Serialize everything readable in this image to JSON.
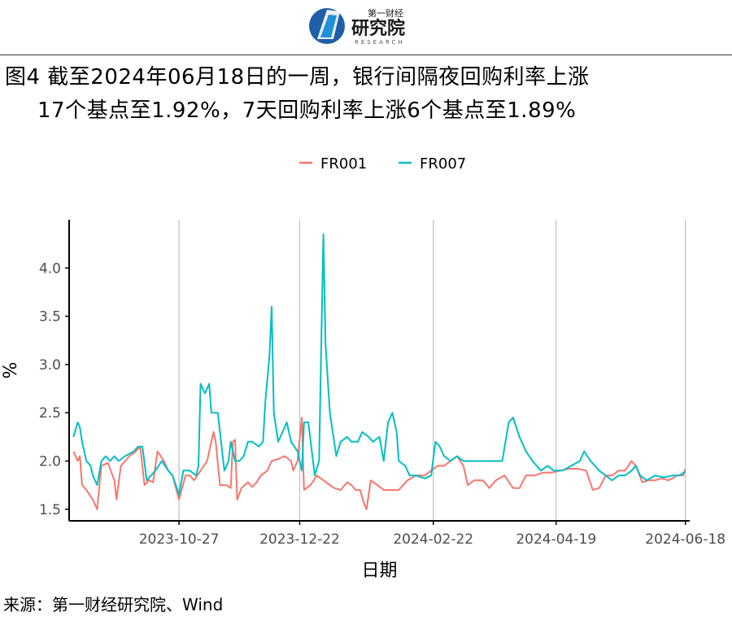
{
  "header": {
    "logo_brand_small": "第一财经",
    "logo_brand_large": "研究院",
    "logo_sub": "RESEARCH"
  },
  "title_line1": "图4  截至2024年06月18日的一周，银行间隔夜回购利率上涨",
  "title_line2": "17个基点至1.92%，7天回购利率上涨6个基点至1.89%",
  "source": "来源：第一财经研究院、Wind",
  "colors": {
    "FR001": "#F8766D",
    "FR007": "#00BFC4",
    "grid": "#BEBEBE",
    "axis": "#000000"
  },
  "chart_data": {
    "type": "line",
    "title": "",
    "xlabel": "日期",
    "ylabel": "%",
    "ylim": [
      1.38,
      4.5
    ],
    "xlim": [
      "2023-09-06",
      "2024-06-20"
    ],
    "yticks": [
      1.5,
      2.0,
      2.5,
      3.0,
      3.5,
      4.0
    ],
    "ytick_labels": [
      "1.5",
      "2.0",
      "2.5",
      "3.0",
      "3.5",
      "4.0"
    ],
    "xticks": [
      "2023-10-27",
      "2023-12-22",
      "2024-02-22",
      "2024-04-19",
      "2024-06-18"
    ],
    "grid": "vertical at x ticks",
    "legend_position": "top",
    "series": [
      {
        "name": "FR001",
        "points": [
          [
            "2023-09-08",
            2.1
          ],
          [
            "2023-09-10",
            2.0
          ],
          [
            "2023-09-11",
            2.05
          ],
          [
            "2023-09-12",
            1.75
          ],
          [
            "2023-09-14",
            1.7
          ],
          [
            "2023-09-17",
            1.6
          ],
          [
            "2023-09-19",
            1.5
          ],
          [
            "2023-09-21",
            1.95
          ],
          [
            "2023-09-24",
            1.98
          ],
          [
            "2023-09-27",
            1.8
          ],
          [
            "2023-09-28",
            1.6
          ],
          [
            "2023-09-30",
            1.95
          ],
          [
            "2023-10-04",
            2.05
          ],
          [
            "2023-10-07",
            2.1
          ],
          [
            "2023-10-09",
            2.15
          ],
          [
            "2023-10-11",
            1.75
          ],
          [
            "2023-10-13",
            1.8
          ],
          [
            "2023-10-15",
            1.78
          ],
          [
            "2023-10-17",
            2.1
          ],
          [
            "2023-10-20",
            2.0
          ],
          [
            "2023-10-22",
            1.9
          ],
          [
            "2023-10-24",
            1.85
          ],
          [
            "2023-10-27",
            1.6
          ],
          [
            "2023-10-30",
            1.85
          ],
          [
            "2023-11-01",
            1.85
          ],
          [
            "2023-11-03",
            1.8
          ],
          [
            "2023-11-06",
            1.9
          ],
          [
            "2023-11-09",
            2.0
          ],
          [
            "2023-11-12",
            2.3
          ],
          [
            "2023-11-13",
            2.2
          ],
          [
            "2023-11-15",
            1.75
          ],
          [
            "2023-11-18",
            1.75
          ],
          [
            "2023-11-20",
            1.72
          ],
          [
            "2023-11-21",
            2.2
          ],
          [
            "2023-11-22",
            2.22
          ],
          [
            "2023-11-23",
            1.6
          ],
          [
            "2023-11-25",
            1.72
          ],
          [
            "2023-11-28",
            1.78
          ],
          [
            "2023-11-30",
            1.73
          ],
          [
            "2023-12-02",
            1.78
          ],
          [
            "2023-12-04",
            1.85
          ],
          [
            "2023-12-07",
            1.9
          ],
          [
            "2023-12-09",
            2.0
          ],
          [
            "2023-12-12",
            2.02
          ],
          [
            "2023-12-15",
            2.05
          ],
          [
            "2023-12-18",
            2.0
          ],
          [
            "2023-12-19",
            1.9
          ],
          [
            "2023-12-21",
            2.0
          ],
          [
            "2023-12-23",
            2.45
          ],
          [
            "2023-12-24",
            1.7
          ],
          [
            "2023-12-27",
            1.75
          ],
          [
            "2023-12-30",
            1.85
          ],
          [
            "2024-01-02",
            1.8
          ],
          [
            "2024-01-05",
            1.75
          ],
          [
            "2024-01-07",
            1.72
          ],
          [
            "2024-01-10",
            1.7
          ],
          [
            "2024-01-13",
            1.78
          ],
          [
            "2024-01-15",
            1.75
          ],
          [
            "2024-01-17",
            1.7
          ],
          [
            "2024-01-19",
            1.7
          ],
          [
            "2024-01-21",
            1.55
          ],
          [
            "2024-01-22",
            1.5
          ],
          [
            "2024-01-24",
            1.8
          ],
          [
            "2024-01-27",
            1.75
          ],
          [
            "2024-01-30",
            1.7
          ],
          [
            "2024-02-02",
            1.7
          ],
          [
            "2024-02-06",
            1.7
          ],
          [
            "2024-02-10",
            1.8
          ],
          [
            "2024-02-14",
            1.85
          ],
          [
            "2024-02-18",
            1.85
          ],
          [
            "2024-02-21",
            1.9
          ],
          [
            "2024-02-24",
            1.95
          ],
          [
            "2024-02-27",
            1.95
          ],
          [
            "2024-03-01",
            2.0
          ],
          [
            "2024-03-04",
            2.05
          ],
          [
            "2024-03-07",
            1.95
          ],
          [
            "2024-03-09",
            1.75
          ],
          [
            "2024-03-12",
            1.8
          ],
          [
            "2024-03-16",
            1.8
          ],
          [
            "2024-03-19",
            1.72
          ],
          [
            "2024-03-22",
            1.8
          ],
          [
            "2024-03-26",
            1.85
          ],
          [
            "2024-03-30",
            1.72
          ],
          [
            "2024-04-02",
            1.72
          ],
          [
            "2024-04-05",
            1.85
          ],
          [
            "2024-04-09",
            1.85
          ],
          [
            "2024-04-13",
            1.88
          ],
          [
            "2024-04-17",
            1.88
          ],
          [
            "2024-04-21",
            1.9
          ],
          [
            "2024-04-25",
            1.92
          ],
          [
            "2024-04-29",
            1.92
          ],
          [
            "2024-05-03",
            1.9
          ],
          [
            "2024-05-06",
            1.7
          ],
          [
            "2024-05-09",
            1.72
          ],
          [
            "2024-05-12",
            1.85
          ],
          [
            "2024-05-15",
            1.85
          ],
          [
            "2024-05-18",
            1.9
          ],
          [
            "2024-05-21",
            1.9
          ],
          [
            "2024-05-24",
            2.0
          ],
          [
            "2024-05-26",
            1.95
          ],
          [
            "2024-05-29",
            1.78
          ],
          [
            "2024-06-01",
            1.8
          ],
          [
            "2024-06-04",
            1.8
          ],
          [
            "2024-06-07",
            1.82
          ],
          [
            "2024-06-10",
            1.8
          ],
          [
            "2024-06-12",
            1.82
          ],
          [
            "2024-06-14",
            1.85
          ],
          [
            "2024-06-17",
            1.85
          ],
          [
            "2024-06-18",
            1.92
          ]
        ]
      },
      {
        "name": "FR007",
        "points": [
          [
            "2023-09-08",
            2.25
          ],
          [
            "2023-09-10",
            2.4
          ],
          [
            "2023-09-11",
            2.35
          ],
          [
            "2023-09-12",
            2.2
          ],
          [
            "2023-09-14",
            2.0
          ],
          [
            "2023-09-16",
            1.95
          ],
          [
            "2023-09-17",
            1.85
          ],
          [
            "2023-09-19",
            1.75
          ],
          [
            "2023-09-21",
            2.0
          ],
          [
            "2023-09-23",
            2.05
          ],
          [
            "2023-09-25",
            2.0
          ],
          [
            "2023-09-27",
            2.05
          ],
          [
            "2023-09-29",
            2.0
          ],
          [
            "2023-10-02",
            2.05
          ],
          [
            "2023-10-06",
            2.1
          ],
          [
            "2023-10-08",
            2.15
          ],
          [
            "2023-10-10",
            2.15
          ],
          [
            "2023-10-12",
            1.8
          ],
          [
            "2023-10-14",
            1.85
          ],
          [
            "2023-10-16",
            1.9
          ],
          [
            "2023-10-19",
            2.0
          ],
          [
            "2023-10-22",
            1.9
          ],
          [
            "2023-10-24",
            1.85
          ],
          [
            "2023-10-27",
            1.65
          ],
          [
            "2023-10-29",
            1.9
          ],
          [
            "2023-11-01",
            1.9
          ],
          [
            "2023-11-04",
            1.85
          ],
          [
            "2023-11-05",
            1.95
          ],
          [
            "2023-11-06",
            2.8
          ],
          [
            "2023-11-08",
            2.7
          ],
          [
            "2023-11-10",
            2.8
          ],
          [
            "2023-11-11",
            2.5
          ],
          [
            "2023-11-14",
            2.5
          ],
          [
            "2023-11-17",
            1.9
          ],
          [
            "2023-11-19",
            2.0
          ],
          [
            "2023-11-20",
            2.2
          ],
          [
            "2023-11-22",
            2.0
          ],
          [
            "2023-11-24",
            2.0
          ],
          [
            "2023-11-26",
            2.05
          ],
          [
            "2023-11-28",
            2.2
          ],
          [
            "2023-11-30",
            2.2
          ],
          [
            "2023-12-03",
            2.15
          ],
          [
            "2023-12-05",
            2.2
          ],
          [
            "2023-12-06",
            2.6
          ],
          [
            "2023-12-08",
            3.1
          ],
          [
            "2023-12-09",
            3.6
          ],
          [
            "2023-12-10",
            2.5
          ],
          [
            "2023-12-12",
            2.2
          ],
          [
            "2023-12-14",
            2.3
          ],
          [
            "2023-12-16",
            2.4
          ],
          [
            "2023-12-18",
            2.2
          ],
          [
            "2023-12-21",
            2.1
          ],
          [
            "2023-12-23",
            1.9
          ],
          [
            "2023-12-24",
            2.4
          ],
          [
            "2023-12-26",
            2.4
          ],
          [
            "2023-12-29",
            1.85
          ],
          [
            "2023-12-31",
            2.0
          ],
          [
            "2024-01-02",
            4.35
          ],
          [
            "2024-01-03",
            3.2
          ],
          [
            "2024-01-05",
            2.5
          ],
          [
            "2024-01-08",
            2.05
          ],
          [
            "2024-01-10",
            2.2
          ],
          [
            "2024-01-13",
            2.25
          ],
          [
            "2024-01-15",
            2.2
          ],
          [
            "2024-01-18",
            2.2
          ],
          [
            "2024-01-20",
            2.3
          ],
          [
            "2024-01-23",
            2.25
          ],
          [
            "2024-01-25",
            2.2
          ],
          [
            "2024-01-28",
            2.25
          ],
          [
            "2024-01-30",
            2.0
          ],
          [
            "2024-02-01",
            2.4
          ],
          [
            "2024-02-03",
            2.5
          ],
          [
            "2024-02-05",
            2.3
          ],
          [
            "2024-02-06",
            2.0
          ],
          [
            "2024-02-09",
            1.95
          ],
          [
            "2024-02-11",
            1.85
          ],
          [
            "2024-02-14",
            1.85
          ],
          [
            "2024-02-18",
            1.82
          ],
          [
            "2024-02-21",
            1.85
          ],
          [
            "2024-02-23",
            2.2
          ],
          [
            "2024-02-25",
            2.15
          ],
          [
            "2024-02-27",
            2.05
          ],
          [
            "2024-03-01",
            2.0
          ],
          [
            "2024-03-04",
            2.05
          ],
          [
            "2024-03-07",
            2.0
          ],
          [
            "2024-03-10",
            2.0
          ],
          [
            "2024-03-15",
            2.0
          ],
          [
            "2024-03-20",
            2.0
          ],
          [
            "2024-03-25",
            2.0
          ],
          [
            "2024-03-28",
            2.4
          ],
          [
            "2024-03-30",
            2.45
          ],
          [
            "2024-04-02",
            2.25
          ],
          [
            "2024-04-05",
            2.1
          ],
          [
            "2024-04-08",
            2.0
          ],
          [
            "2024-04-10",
            1.95
          ],
          [
            "2024-04-12",
            1.9
          ],
          [
            "2024-04-15",
            1.95
          ],
          [
            "2024-04-18",
            1.9
          ],
          [
            "2024-04-22",
            1.9
          ],
          [
            "2024-04-26",
            1.95
          ],
          [
            "2024-04-30",
            2.0
          ],
          [
            "2024-05-02",
            2.1
          ],
          [
            "2024-05-05",
            2.0
          ],
          [
            "2024-05-09",
            1.9
          ],
          [
            "2024-05-12",
            1.85
          ],
          [
            "2024-05-15",
            1.8
          ],
          [
            "2024-05-18",
            1.85
          ],
          [
            "2024-05-21",
            1.85
          ],
          [
            "2024-05-24",
            1.9
          ],
          [
            "2024-05-26",
            1.95
          ],
          [
            "2024-05-28",
            1.85
          ],
          [
            "2024-05-31",
            1.8
          ],
          [
            "2024-06-04",
            1.85
          ],
          [
            "2024-06-08",
            1.83
          ],
          [
            "2024-06-12",
            1.85
          ],
          [
            "2024-06-15",
            1.85
          ],
          [
            "2024-06-18",
            1.89
          ]
        ]
      }
    ]
  }
}
